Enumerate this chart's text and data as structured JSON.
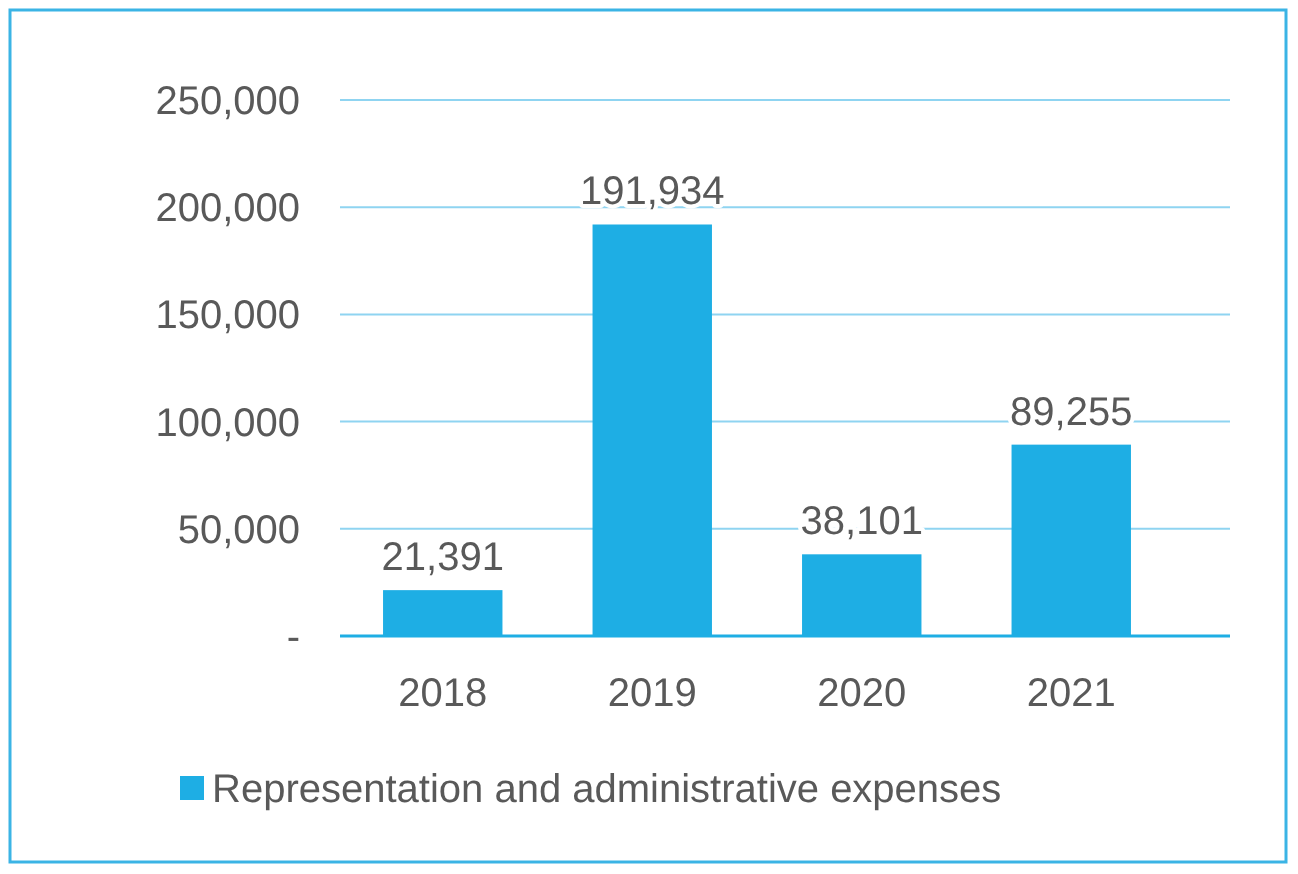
{
  "chart_data": {
    "type": "bar",
    "categories": [
      "2018",
      "2019",
      "2020",
      "2021"
    ],
    "series": [
      {
        "name": "Representation and administrative expenses",
        "color": "#1eaee4",
        "values": [
          21391,
          191934,
          38101,
          89255
        ],
        "value_labels": [
          "21,391",
          "191,934",
          "38,101",
          "89,255"
        ]
      }
    ],
    "ylim": [
      0,
      250000
    ],
    "yticks": [
      {
        "value": 0,
        "label": "-"
      },
      {
        "value": 50000,
        "label": "50,000"
      },
      {
        "value": 100000,
        "label": "100,000"
      },
      {
        "value": 150000,
        "label": "150,000"
      },
      {
        "value": 200000,
        "label": "200,000"
      },
      {
        "value": 250000,
        "label": "250,000"
      }
    ],
    "grid": "y",
    "legend": "bottom"
  }
}
